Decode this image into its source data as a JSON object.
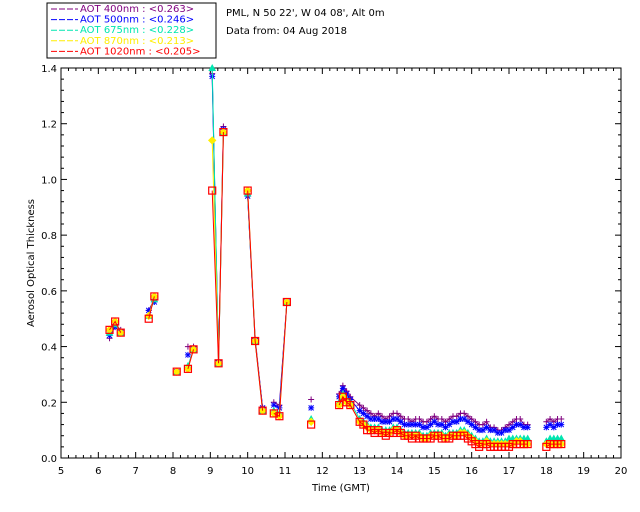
{
  "info": {
    "site": "PML, N 50 22', W 04 08', Alt 0m",
    "date": "Data from: 04 Aug 2018"
  },
  "chart_data": {
    "type": "line",
    "xlabel": "Time (GMT)",
    "ylabel": "Aerosol Optical Thickness",
    "xlim": [
      5,
      20
    ],
    "ylim": [
      0.0,
      1.4
    ],
    "xticks": [
      "5",
      "6",
      "7",
      "8",
      "9",
      "10",
      "11",
      "12",
      "13",
      "14",
      "15",
      "16",
      "17",
      "18",
      "19",
      "20"
    ],
    "yticks": [
      "0.0",
      "0.2",
      "0.4",
      "0.6",
      "0.8",
      "1.0",
      "1.2",
      "1.4"
    ],
    "grid": false,
    "legend_position": "top-left",
    "series": [
      {
        "name": "AOT  400nm : <0.263>",
        "color": "#7f007f",
        "marker": "plus",
        "x": [
          6.3,
          6.45,
          6.6,
          7.35,
          7.5,
          8.1,
          8.4,
          8.55,
          9.05,
          9.22,
          9.35,
          10.0,
          10.2,
          10.4,
          10.7,
          10.85,
          11.05,
          11.7,
          12.45,
          12.55,
          12.65,
          12.75,
          13.0,
          13.1,
          13.2,
          13.3,
          13.4,
          13.5,
          13.6,
          13.7,
          13.8,
          13.9,
          14.0,
          14.1,
          14.2,
          14.3,
          14.4,
          14.5,
          14.6,
          14.7,
          14.8,
          14.9,
          15.0,
          15.1,
          15.2,
          15.3,
          15.4,
          15.5,
          15.6,
          15.7,
          15.8,
          15.9,
          16.0,
          16.1,
          16.2,
          16.3,
          16.4,
          16.5,
          16.6,
          16.7,
          16.8,
          16.9,
          17.0,
          17.1,
          17.2,
          17.3,
          17.4,
          17.5,
          18.0,
          18.1,
          18.2,
          18.3,
          18.4
        ],
        "y": [
          0.43,
          0.48,
          0.46,
          0.53,
          0.57,
          0.31,
          0.4,
          0.4,
          1.38,
          0.35,
          1.19,
          0.94,
          0.43,
          0.18,
          0.2,
          0.19,
          0.56,
          0.21,
          0.23,
          0.26,
          0.24,
          0.22,
          0.19,
          0.18,
          0.17,
          0.16,
          0.15,
          0.16,
          0.15,
          0.14,
          0.15,
          0.16,
          0.16,
          0.15,
          0.14,
          0.14,
          0.13,
          0.14,
          0.14,
          0.13,
          0.13,
          0.14,
          0.15,
          0.14,
          0.14,
          0.13,
          0.14,
          0.15,
          0.15,
          0.16,
          0.16,
          0.15,
          0.14,
          0.13,
          0.12,
          0.12,
          0.13,
          0.11,
          0.11,
          0.1,
          0.1,
          0.11,
          0.12,
          0.13,
          0.14,
          0.14,
          0.12,
          0.12,
          0.13,
          0.14,
          0.13,
          0.14,
          0.14
        ]
      },
      {
        "name": "AOT  500nm : <0.246>",
        "color": "#0000ff",
        "marker": "star",
        "x": [
          6.3,
          6.45,
          6.6,
          7.35,
          7.5,
          8.1,
          8.4,
          8.55,
          9.05,
          9.22,
          9.35,
          10.0,
          10.2,
          10.4,
          10.7,
          10.85,
          11.05,
          11.7,
          12.45,
          12.55,
          12.65,
          12.75,
          13.0,
          13.1,
          13.2,
          13.3,
          13.4,
          13.5,
          13.6,
          13.7,
          13.8,
          13.9,
          14.0,
          14.1,
          14.2,
          14.3,
          14.4,
          14.5,
          14.6,
          14.7,
          14.8,
          14.9,
          15.0,
          15.1,
          15.2,
          15.3,
          15.4,
          15.5,
          15.6,
          15.7,
          15.8,
          15.9,
          16.0,
          16.1,
          16.2,
          16.3,
          16.4,
          16.5,
          16.6,
          16.7,
          16.8,
          16.9,
          17.0,
          17.1,
          17.2,
          17.3,
          17.4,
          17.5,
          18.0,
          18.1,
          18.2,
          18.3,
          18.4
        ],
        "y": [
          0.44,
          0.47,
          0.45,
          0.53,
          0.56,
          0.31,
          0.37,
          0.39,
          1.37,
          0.34,
          1.18,
          0.94,
          0.42,
          0.18,
          0.19,
          0.18,
          0.56,
          0.18,
          0.22,
          0.25,
          0.23,
          0.21,
          0.17,
          0.16,
          0.15,
          0.14,
          0.14,
          0.14,
          0.13,
          0.13,
          0.13,
          0.14,
          0.14,
          0.13,
          0.12,
          0.12,
          0.12,
          0.12,
          0.12,
          0.11,
          0.11,
          0.12,
          0.13,
          0.12,
          0.12,
          0.11,
          0.12,
          0.13,
          0.13,
          0.14,
          0.14,
          0.13,
          0.12,
          0.11,
          0.1,
          0.1,
          0.11,
          0.1,
          0.1,
          0.09,
          0.09,
          0.1,
          0.1,
          0.11,
          0.12,
          0.12,
          0.11,
          0.11,
          0.11,
          0.12,
          0.11,
          0.12,
          0.12
        ]
      },
      {
        "name": "AOT  675nm : <0.228>",
        "color": "#00e6b0",
        "marker": "triangle",
        "x": [
          6.3,
          6.45,
          6.6,
          7.35,
          7.5,
          8.1,
          8.4,
          8.55,
          9.05,
          9.22,
          9.35,
          10.0,
          10.2,
          10.4,
          10.7,
          10.85,
          11.05,
          11.7,
          12.45,
          12.55,
          12.65,
          12.75,
          13.0,
          13.1,
          13.2,
          13.3,
          13.4,
          13.5,
          13.6,
          13.7,
          13.8,
          13.9,
          14.0,
          14.1,
          14.2,
          14.3,
          14.4,
          14.5,
          14.6,
          14.7,
          14.8,
          14.9,
          15.0,
          15.1,
          15.2,
          15.3,
          15.4,
          15.5,
          15.6,
          15.7,
          15.8,
          15.9,
          16.0,
          16.1,
          16.2,
          16.3,
          16.4,
          16.5,
          16.6,
          16.7,
          16.8,
          16.9,
          17.0,
          17.1,
          17.2,
          17.3,
          17.4,
          17.5,
          18.0,
          18.1,
          18.2,
          18.3,
          18.4
        ],
        "y": [
          0.45,
          0.48,
          0.45,
          0.51,
          0.57,
          0.31,
          0.33,
          0.39,
          1.4,
          0.34,
          1.17,
          0.95,
          0.42,
          0.17,
          0.17,
          0.16,
          0.56,
          0.14,
          0.2,
          0.23,
          0.21,
          0.2,
          0.14,
          0.13,
          0.12,
          0.11,
          0.11,
          0.11,
          0.1,
          0.1,
          0.1,
          0.11,
          0.11,
          0.1,
          0.09,
          0.09,
          0.09,
          0.09,
          0.09,
          0.08,
          0.08,
          0.09,
          0.09,
          0.09,
          0.09,
          0.08,
          0.09,
          0.09,
          0.09,
          0.1,
          0.1,
          0.09,
          0.08,
          0.07,
          0.06,
          0.06,
          0.07,
          0.06,
          0.06,
          0.06,
          0.06,
          0.06,
          0.07,
          0.07,
          0.07,
          0.07,
          0.07,
          0.07,
          0.06,
          0.07,
          0.07,
          0.07,
          0.07
        ]
      },
      {
        "name": "AOT  870nm : <0.213>",
        "color": "#ffee00",
        "marker": "diamond",
        "x": [
          6.3,
          6.45,
          6.6,
          7.35,
          7.5,
          8.1,
          8.4,
          8.55,
          9.05,
          9.22,
          9.35,
          10.0,
          10.2,
          10.4,
          10.7,
          10.85,
          11.05,
          11.7,
          12.45,
          12.55,
          12.65,
          12.75,
          13.0,
          13.1,
          13.2,
          13.3,
          13.4,
          13.5,
          13.6,
          13.7,
          13.8,
          13.9,
          14.0,
          14.1,
          14.2,
          14.3,
          14.4,
          14.5,
          14.6,
          14.7,
          14.8,
          14.9,
          15.0,
          15.1,
          15.2,
          15.3,
          15.4,
          15.5,
          15.6,
          15.7,
          15.8,
          15.9,
          16.0,
          16.1,
          16.2,
          16.3,
          16.4,
          16.5,
          16.6,
          16.7,
          16.8,
          16.9,
          17.0,
          17.1,
          17.2,
          17.3,
          17.4,
          17.5,
          18.0,
          18.1,
          18.2,
          18.3,
          18.4
        ],
        "y": [
          0.46,
          0.49,
          0.45,
          0.51,
          0.58,
          0.31,
          0.32,
          0.39,
          1.14,
          0.34,
          1.17,
          0.96,
          0.42,
          0.17,
          0.16,
          0.15,
          0.56,
          0.13,
          0.19,
          0.22,
          0.2,
          0.19,
          0.13,
          0.12,
          0.11,
          0.1,
          0.1,
          0.1,
          0.09,
          0.09,
          0.09,
          0.1,
          0.1,
          0.09,
          0.08,
          0.08,
          0.08,
          0.08,
          0.08,
          0.07,
          0.07,
          0.08,
          0.08,
          0.08,
          0.08,
          0.07,
          0.08,
          0.08,
          0.08,
          0.09,
          0.09,
          0.08,
          0.07,
          0.06,
          0.05,
          0.05,
          0.06,
          0.05,
          0.05,
          0.05,
          0.05,
          0.05,
          0.05,
          0.05,
          0.06,
          0.06,
          0.05,
          0.05,
          0.05,
          0.05,
          0.05,
          0.05,
          0.05
        ]
      },
      {
        "name": "AOT 1020nm : <0.205>",
        "color": "#ff0000",
        "marker": "square",
        "x": [
          6.3,
          6.45,
          6.6,
          7.35,
          7.5,
          8.1,
          8.4,
          8.55,
          9.05,
          9.22,
          9.35,
          10.0,
          10.2,
          10.4,
          10.7,
          10.85,
          11.05,
          11.7,
          12.45,
          12.55,
          12.65,
          12.75,
          13.0,
          13.1,
          13.2,
          13.3,
          13.4,
          13.5,
          13.6,
          13.7,
          13.8,
          13.9,
          14.0,
          14.1,
          14.2,
          14.3,
          14.4,
          14.5,
          14.6,
          14.7,
          14.8,
          14.9,
          15.0,
          15.1,
          15.2,
          15.3,
          15.4,
          15.5,
          15.6,
          15.7,
          15.8,
          15.9,
          16.0,
          16.1,
          16.2,
          16.3,
          16.4,
          16.5,
          16.6,
          16.7,
          16.8,
          16.9,
          17.0,
          17.1,
          17.2,
          17.3,
          17.4,
          17.5,
          18.0,
          18.1,
          18.2,
          18.3,
          18.4
        ],
        "y": [
          0.46,
          0.49,
          0.45,
          0.5,
          0.58,
          0.31,
          0.32,
          0.39,
          0.96,
          0.34,
          1.17,
          0.96,
          0.42,
          0.17,
          0.16,
          0.15,
          0.56,
          0.12,
          0.19,
          0.22,
          0.2,
          0.19,
          0.13,
          0.12,
          0.1,
          0.1,
          0.09,
          0.1,
          0.09,
          0.08,
          0.09,
          0.09,
          0.1,
          0.09,
          0.08,
          0.08,
          0.07,
          0.08,
          0.07,
          0.07,
          0.07,
          0.07,
          0.08,
          0.08,
          0.07,
          0.07,
          0.07,
          0.08,
          0.08,
          0.08,
          0.08,
          0.07,
          0.06,
          0.05,
          0.04,
          0.05,
          0.05,
          0.04,
          0.04,
          0.04,
          0.04,
          0.04,
          0.04,
          0.05,
          0.05,
          0.05,
          0.05,
          0.05,
          0.04,
          0.05,
          0.05,
          0.05,
          0.05
        ]
      }
    ]
  }
}
